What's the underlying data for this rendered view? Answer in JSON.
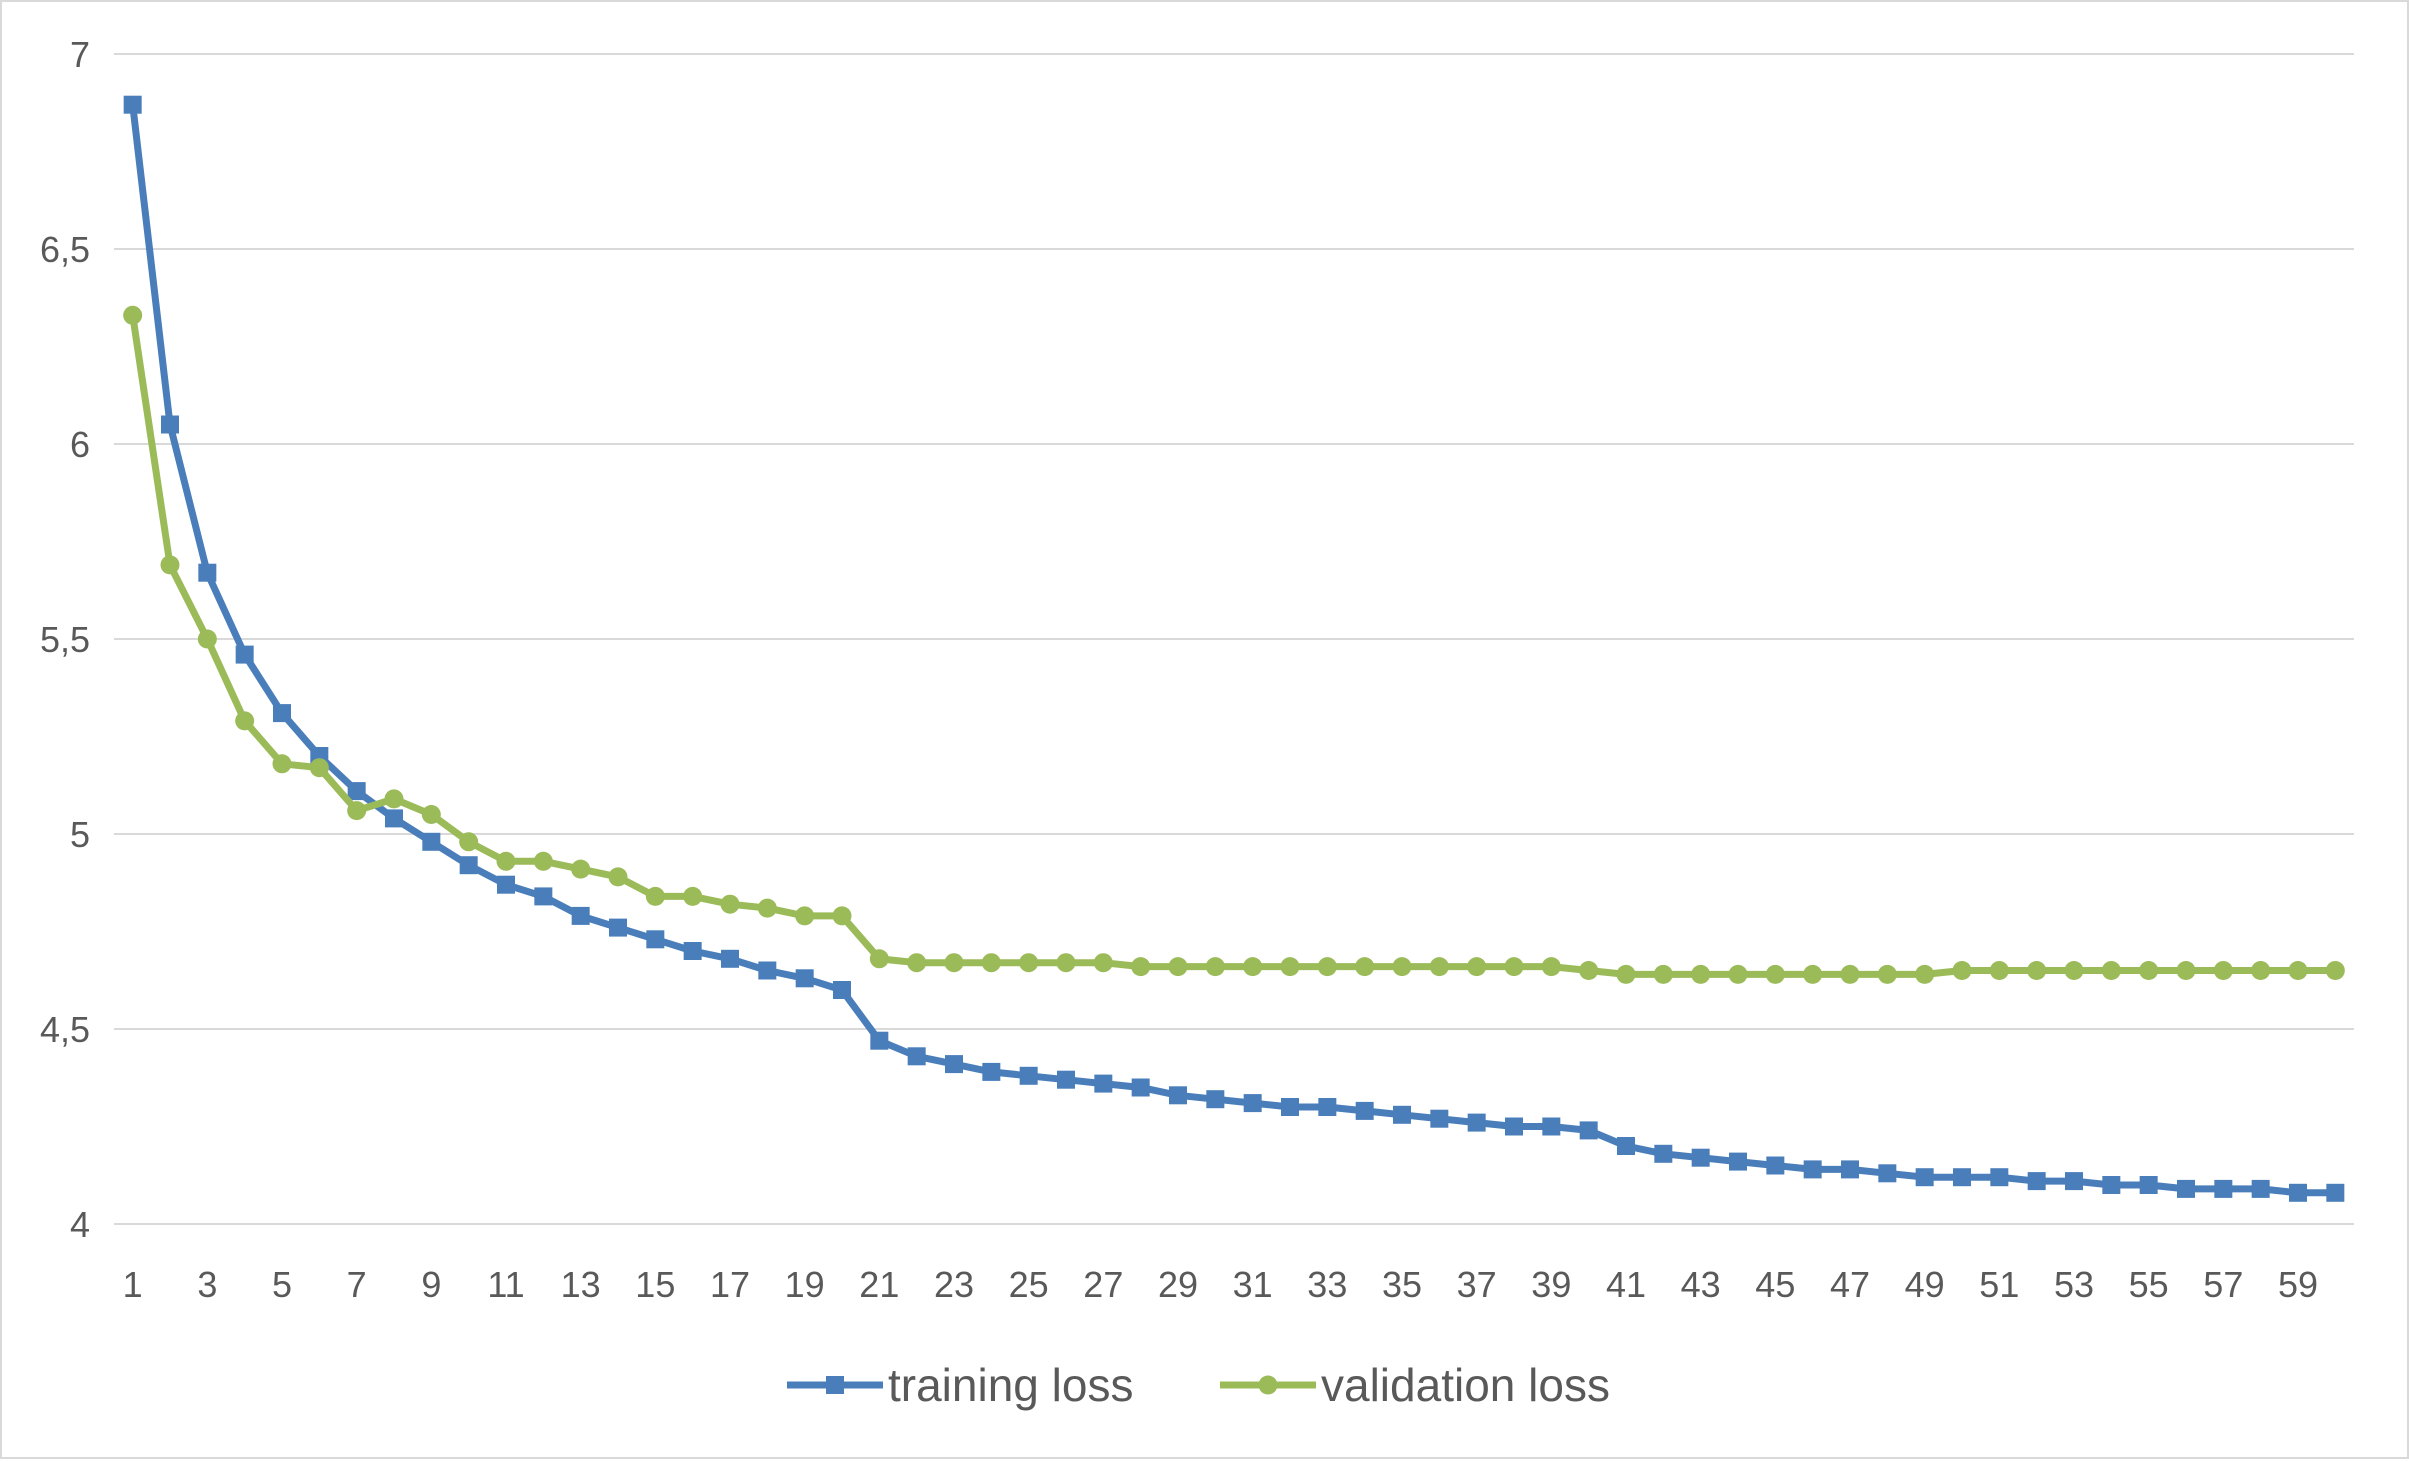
{
  "chart_data": {
    "type": "line",
    "title": "",
    "xlabel": "",
    "ylabel": "",
    "x": [
      1,
      2,
      3,
      4,
      5,
      6,
      7,
      8,
      9,
      10,
      11,
      12,
      13,
      14,
      15,
      16,
      17,
      18,
      19,
      20,
      21,
      22,
      23,
      24,
      25,
      26,
      27,
      28,
      29,
      30,
      31,
      32,
      33,
      34,
      35,
      36,
      37,
      38,
      39,
      40,
      41,
      42,
      43,
      44,
      45,
      46,
      47,
      48,
      49,
      50,
      51,
      52,
      53,
      54,
      55,
      56,
      57,
      58,
      59,
      60
    ],
    "x_tick_labels": [
      "1",
      "3",
      "5",
      "7",
      "9",
      "11",
      "13",
      "15",
      "17",
      "19",
      "21",
      "23",
      "25",
      "27",
      "29",
      "31",
      "33",
      "35",
      "37",
      "39",
      "41",
      "43",
      "45",
      "47",
      "49",
      "51",
      "53",
      "55",
      "57",
      "59"
    ],
    "ylim": [
      4,
      7
    ],
    "y_tick_labels": [
      "4",
      "4,5",
      "5",
      "5,5",
      "6",
      "6,5",
      "7"
    ],
    "grid": true,
    "legend_position": "bottom",
    "series": [
      {
        "name": "training loss",
        "color": "#4a7ebb",
        "marker": "square",
        "values": [
          6.87,
          6.05,
          5.67,
          5.46,
          5.31,
          5.2,
          5.11,
          5.04,
          4.98,
          4.92,
          4.87,
          4.84,
          4.79,
          4.76,
          4.73,
          4.7,
          4.68,
          4.65,
          4.63,
          4.6,
          4.47,
          4.43,
          4.41,
          4.39,
          4.38,
          4.37,
          4.36,
          4.35,
          4.33,
          4.32,
          4.31,
          4.3,
          4.3,
          4.29,
          4.28,
          4.27,
          4.26,
          4.25,
          4.25,
          4.24,
          4.2,
          4.18,
          4.17,
          4.16,
          4.15,
          4.14,
          4.14,
          4.13,
          4.12,
          4.12,
          4.12,
          4.11,
          4.11,
          4.1,
          4.1,
          4.09,
          4.09,
          4.09,
          4.08,
          4.08
        ]
      },
      {
        "name": "validation loss",
        "color": "#9bbb59",
        "marker": "circle",
        "values": [
          6.33,
          5.69,
          5.5,
          5.29,
          5.18,
          5.17,
          5.06,
          5.09,
          5.05,
          4.98,
          4.93,
          4.93,
          4.91,
          4.89,
          4.84,
          4.84,
          4.82,
          4.81,
          4.79,
          4.79,
          4.68,
          4.67,
          4.67,
          4.67,
          4.67,
          4.67,
          4.67,
          4.66,
          4.66,
          4.66,
          4.66,
          4.66,
          4.66,
          4.66,
          4.66,
          4.66,
          4.66,
          4.66,
          4.66,
          4.65,
          4.64,
          4.64,
          4.64,
          4.64,
          4.64,
          4.64,
          4.64,
          4.64,
          4.64,
          4.65,
          4.65,
          4.65,
          4.65,
          4.65,
          4.65,
          4.65,
          4.65,
          4.65,
          4.65,
          4.65
        ]
      }
    ]
  }
}
